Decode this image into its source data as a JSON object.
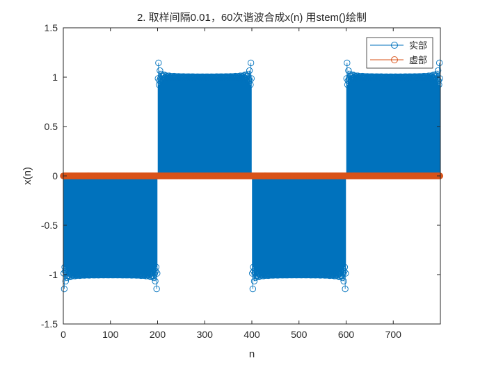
{
  "chart_data": {
    "type": "stem",
    "title": "2. 取样间隔0.01，60次谐波合成x(n) 用stem()绘制",
    "xlabel": "n",
    "ylabel": "x(n)",
    "xlim": [
      0,
      800
    ],
    "ylim": [
      -1.5,
      1.5
    ],
    "xticks": [
      0,
      100,
      200,
      300,
      400,
      500,
      600,
      700
    ],
    "yticks": [
      -1.5,
      -1,
      -0.5,
      0,
      0.5,
      1,
      1.5
    ],
    "xtick_labels": [
      "0",
      "100",
      "200",
      "300",
      "400",
      "500",
      "600",
      "700"
    ],
    "ytick_labels": [
      "-1.5",
      "-1",
      "-0.5",
      "0",
      "0.5",
      "1",
      "1.5"
    ],
    "n_range": [
      0,
      799
    ],
    "square_wave_period": 400,
    "harmonics": 60,
    "sample_step": 0.01,
    "legend_position": "top-right",
    "series": [
      {
        "name": "实部",
        "color": "#0072BD",
        "description": "60-harmonic Fourier synthesis of a square wave (values ±1 with Gibbs overshoot to about ±1.18)"
      },
      {
        "name": "虚部",
        "color": "#D95319",
        "values_constant": 0
      }
    ],
    "grid": false
  }
}
